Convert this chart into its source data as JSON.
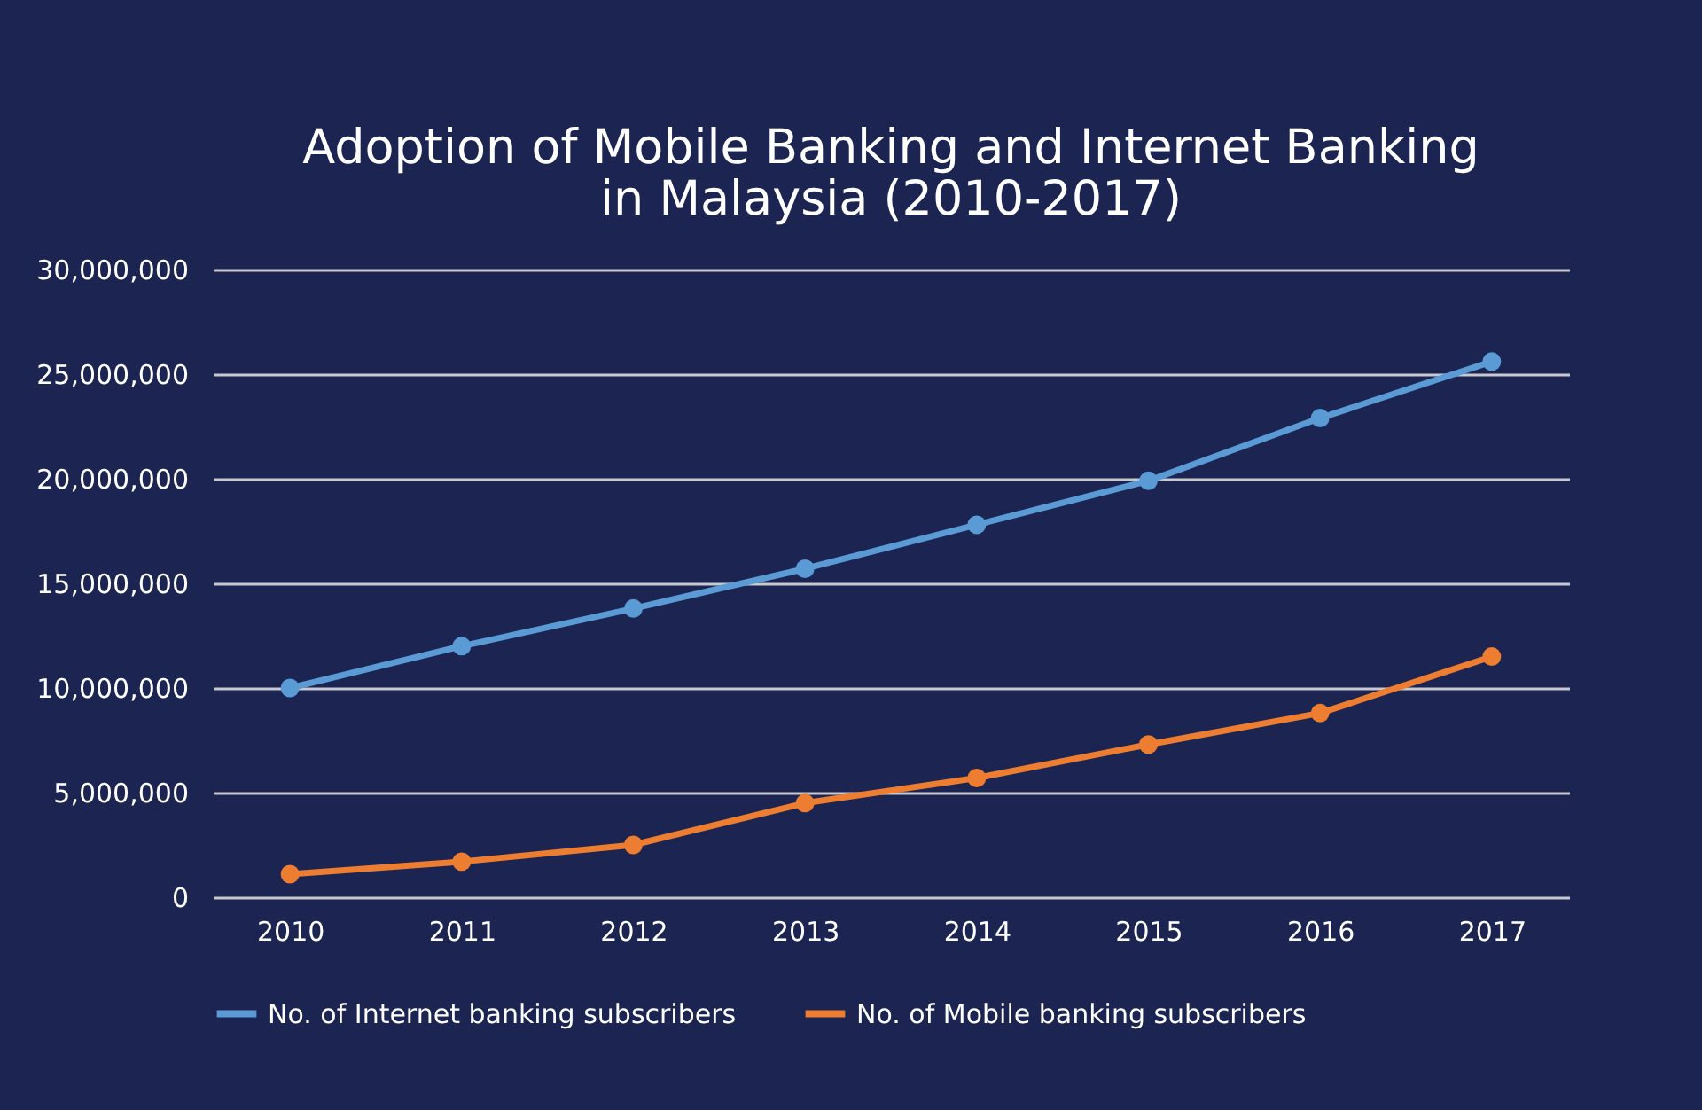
{
  "chart_data": {
    "type": "line",
    "title": "Adoption of Mobile Banking and Internet Banking in Malaysia (2010-2017)",
    "categories": [
      "2010",
      "2011",
      "2012",
      "2013",
      "2014",
      "2015",
      "2016",
      "2017"
    ],
    "series": [
      {
        "name": "No. of Internet banking subscribers",
        "color": "#5b9bd5",
        "values": [
          10000000,
          12000000,
          13800000,
          15700000,
          17800000,
          19900000,
          22900000,
          25600000
        ]
      },
      {
        "name": "No. of Mobile banking subscribers",
        "color": "#ed7d31",
        "values": [
          1100000,
          1700000,
          2500000,
          4500000,
          5700000,
          7300000,
          8800000,
          11500000
        ]
      }
    ],
    "ylim": [
      0,
      30000000
    ],
    "yticks": [
      0,
      {
        "value": 5000000,
        "label": "5,000,000"
      },
      {
        "value": 10000000,
        "label": "10,000,000"
      },
      {
        "value": 15000000,
        "label": "15,000,000"
      },
      {
        "value": 20000000,
        "label": "20,000,000"
      },
      {
        "value": 25000000,
        "label": "25,000,000"
      },
      {
        "value": 30000000,
        "label": "30,000,000"
      }
    ],
    "grid": "y",
    "legend": "bottom",
    "marker": "circle",
    "line_style": "solid"
  }
}
